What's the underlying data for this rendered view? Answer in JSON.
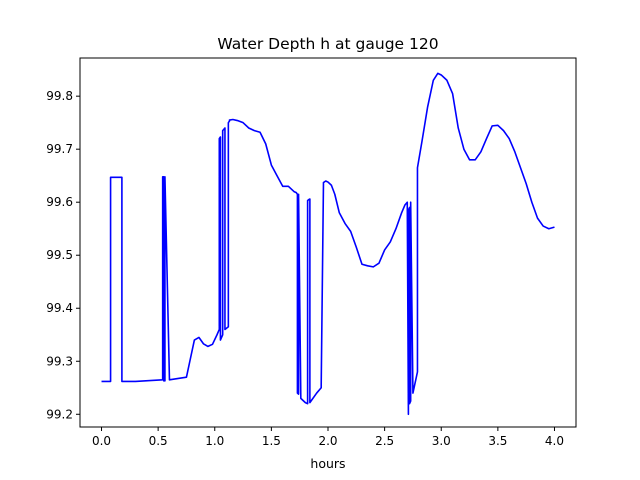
{
  "chart_data": {
    "type": "line",
    "title": "Water Depth h at gauge 120",
    "xlabel": "hours",
    "ylabel": "",
    "xlim": [
      -0.19,
      4.19
    ],
    "ylim": [
      99.176,
      99.872
    ],
    "x_ticks": [
      0.0,
      0.5,
      1.0,
      1.5,
      2.0,
      2.5,
      3.0,
      3.5,
      4.0
    ],
    "x_tick_labels": [
      "0.0",
      "0.5",
      "1.0",
      "1.5",
      "2.0",
      "2.5",
      "3.0",
      "3.5",
      "4.0"
    ],
    "y_ticks": [
      99.2,
      99.3,
      99.4,
      99.5,
      99.6,
      99.7,
      99.8
    ],
    "y_tick_labels": [
      "99.2",
      "99.3",
      "99.4",
      "99.5",
      "99.6",
      "99.7",
      "99.8"
    ],
    "grid": false,
    "series": [
      {
        "color": "#0000ff",
        "x": [
          0.0,
          0.08,
          0.08,
          0.18,
          0.18,
          0.3,
          0.54,
          0.54,
          0.55,
          0.55,
          0.56,
          0.56,
          0.6,
          0.75,
          0.78,
          0.82,
          0.86,
          0.9,
          0.94,
          0.98,
          1.02,
          1.04,
          1.04,
          1.05,
          1.05,
          1.07,
          1.07,
          1.09,
          1.09,
          1.12,
          1.12,
          1.13,
          1.13,
          1.16,
          1.2,
          1.25,
          1.3,
          1.35,
          1.4,
          1.45,
          1.5,
          1.55,
          1.6,
          1.65,
          1.7,
          1.72,
          1.73,
          1.73,
          1.74,
          1.74,
          1.76,
          1.8,
          1.82,
          1.82,
          1.83,
          1.84,
          1.84,
          1.9,
          1.94,
          1.94,
          1.96,
          1.98,
          2.0,
          2.03,
          2.06,
          2.1,
          2.15,
          2.2,
          2.25,
          2.3,
          2.35,
          2.4,
          2.45,
          2.5,
          2.55,
          2.6,
          2.65,
          2.68,
          2.7,
          2.71,
          2.71,
          2.72,
          2.72,
          2.73,
          2.73,
          2.75,
          2.77,
          2.79,
          2.79,
          2.83,
          2.88,
          2.93,
          2.97,
          3.0,
          3.05,
          3.1,
          3.15,
          3.2,
          3.25,
          3.3,
          3.35,
          3.4,
          3.45,
          3.5,
          3.55,
          3.6,
          3.65,
          3.7,
          3.75,
          3.8,
          3.85,
          3.9,
          3.95,
          4.0
        ],
        "y": [
          99.262,
          99.262,
          99.647,
          99.647,
          99.262,
          99.262,
          99.265,
          99.648,
          99.648,
          99.263,
          99.263,
          99.648,
          99.265,
          99.27,
          99.3,
          99.34,
          99.345,
          99.333,
          99.328,
          99.332,
          99.35,
          99.36,
          99.72,
          99.723,
          99.34,
          99.35,
          99.735,
          99.74,
          99.36,
          99.365,
          99.75,
          99.753,
          99.755,
          99.756,
          99.754,
          99.75,
          99.74,
          99.735,
          99.732,
          99.71,
          99.67,
          99.65,
          99.63,
          99.63,
          99.62,
          99.618,
          99.615,
          99.24,
          99.238,
          99.615,
          99.23,
          99.222,
          99.22,
          99.603,
          99.605,
          99.606,
          99.222,
          99.24,
          99.25,
          99.256,
          99.637,
          99.64,
          99.638,
          99.632,
          99.615,
          99.58,
          99.56,
          99.545,
          99.515,
          99.483,
          99.48,
          99.478,
          99.485,
          99.51,
          99.525,
          99.55,
          99.58,
          99.595,
          99.6,
          99.2,
          99.585,
          99.59,
          99.22,
          99.225,
          99.6,
          99.24,
          99.26,
          99.28,
          99.665,
          99.715,
          99.78,
          99.83,
          99.843,
          99.84,
          99.83,
          99.805,
          99.74,
          99.7,
          99.68,
          99.68,
          99.695,
          99.72,
          99.744,
          99.745,
          99.735,
          99.72,
          99.695,
          99.665,
          99.635,
          99.6,
          99.57,
          99.555,
          99.55,
          99.553
        ]
      }
    ]
  }
}
